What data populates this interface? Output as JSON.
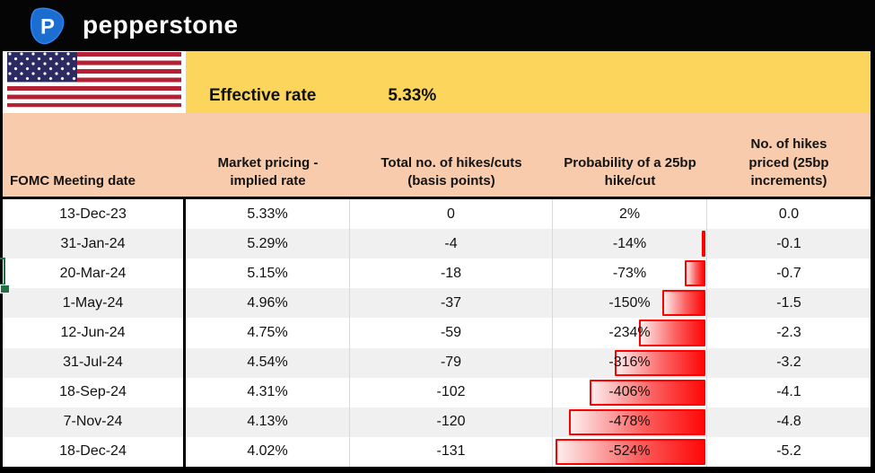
{
  "brand": {
    "wordmark": "pepperstone",
    "logo_letter": "P",
    "logo_color": "#1C6DD0"
  },
  "rate_banner": {
    "label": "Effective rate",
    "value": "5.33%",
    "background": "#FCD65C"
  },
  "flag": {
    "country": "united-states"
  },
  "table": {
    "header_background": "#F8CBAD",
    "bar_color": "#FE0000",
    "columns": [
      "FOMC Meeting date",
      "Market pricing - implied rate",
      "Total no. of hikes/cuts (basis points)",
      "Probability of a 25bp hike/cut",
      "No. of hikes priced (25bp increments)"
    ],
    "rows": [
      {
        "date": "13-Dec-23",
        "implied_rate": "5.33%",
        "total_bp": "0",
        "probability": "2%",
        "hikes_priced": "0.0",
        "bar_pct": 0
      },
      {
        "date": "31-Jan-24",
        "implied_rate": "5.29%",
        "total_bp": "-4",
        "probability": "-14%",
        "hikes_priced": "-0.1",
        "bar_pct": 2.6
      },
      {
        "date": "20-Mar-24",
        "implied_rate": "5.15%",
        "total_bp": "-18",
        "probability": "-73%",
        "hikes_priced": "-0.7",
        "bar_pct": 13.6
      },
      {
        "date": "1-May-24",
        "implied_rate": "4.96%",
        "total_bp": "-37",
        "probability": "-150%",
        "hikes_priced": "-1.5",
        "bar_pct": 27.9
      },
      {
        "date": "12-Jun-24",
        "implied_rate": "4.75%",
        "total_bp": "-59",
        "probability": "-234%",
        "hikes_priced": "-2.3",
        "bar_pct": 43.5
      },
      {
        "date": "31-Jul-24",
        "implied_rate": "4.54%",
        "total_bp": "-79",
        "probability": "-316%",
        "hikes_priced": "-3.2",
        "bar_pct": 58.8
      },
      {
        "date": "18-Sep-24",
        "implied_rate": "4.31%",
        "total_bp": "-102",
        "probability": "-406%",
        "hikes_priced": "-4.1",
        "bar_pct": 75.5
      },
      {
        "date": "7-Nov-24",
        "implied_rate": "4.13%",
        "total_bp": "-120",
        "probability": "-478%",
        "hikes_priced": "-4.8",
        "bar_pct": 88.9
      },
      {
        "date": "18-Dec-24",
        "implied_rate": "4.02%",
        "total_bp": "-131",
        "probability": "-524%",
        "hikes_priced": "-5.2",
        "bar_pct": 97.5
      }
    ]
  }
}
